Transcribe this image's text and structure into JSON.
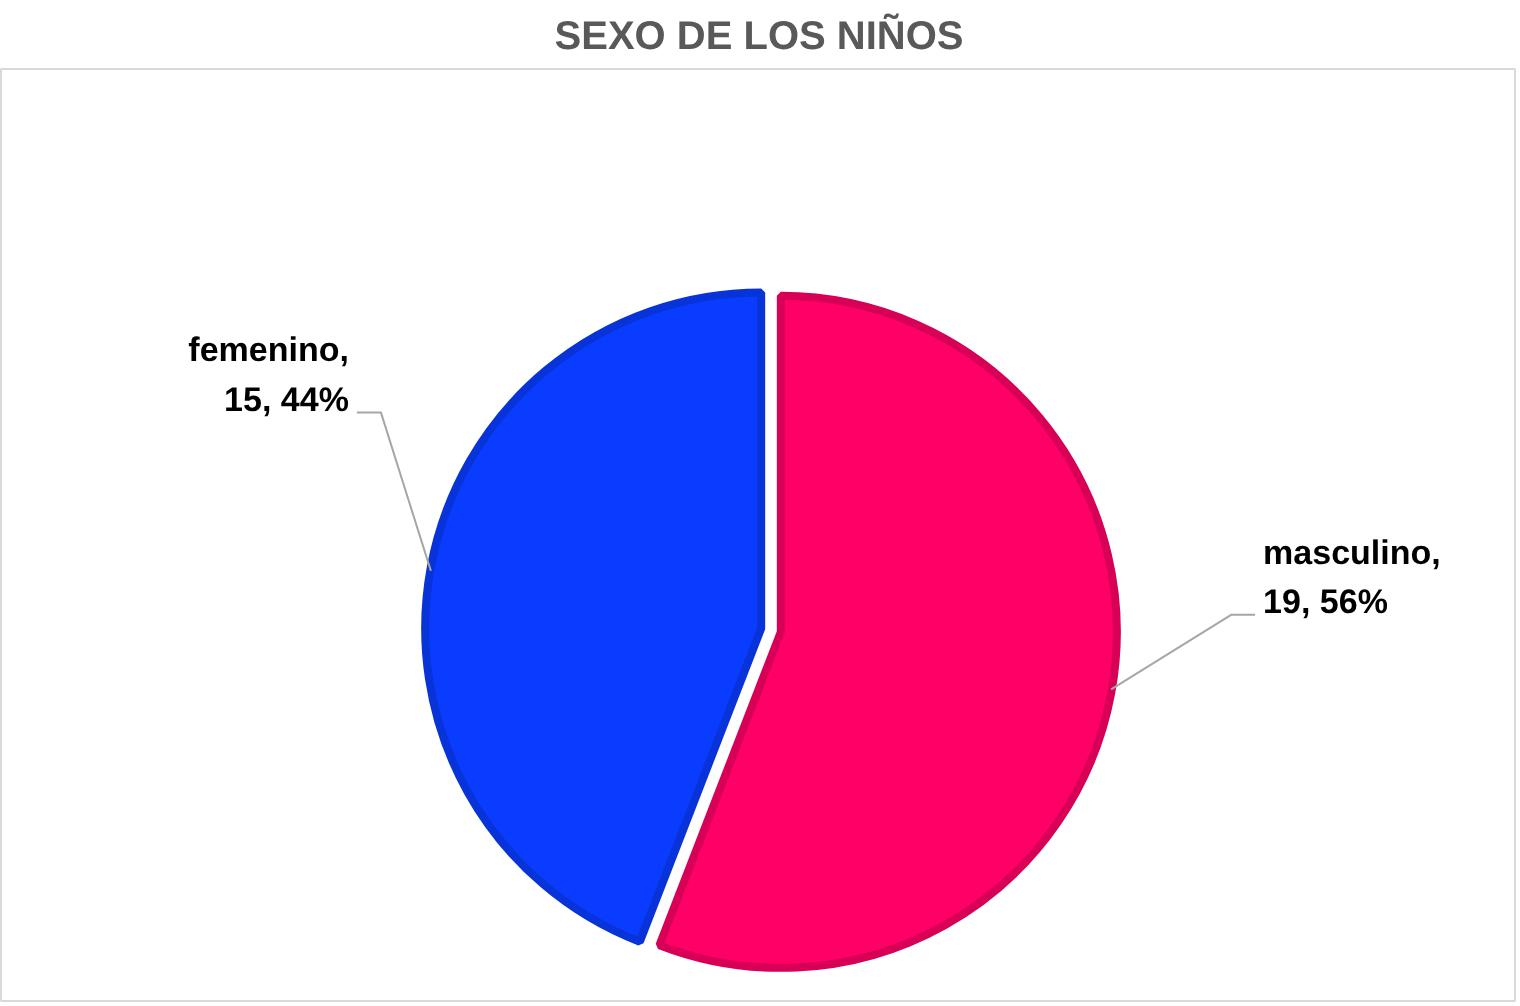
{
  "chart_data": {
    "type": "pie",
    "title": "SEXO DE LOS NIÑOS",
    "categories": [
      "masculino",
      "femenino"
    ],
    "values": [
      19,
      15
    ],
    "colors": [
      "#ff0066",
      "#0a3cff"
    ],
    "value_labels": [
      ",\n19, 56%",
      ",\n15, 44%"
    ]
  }
}
